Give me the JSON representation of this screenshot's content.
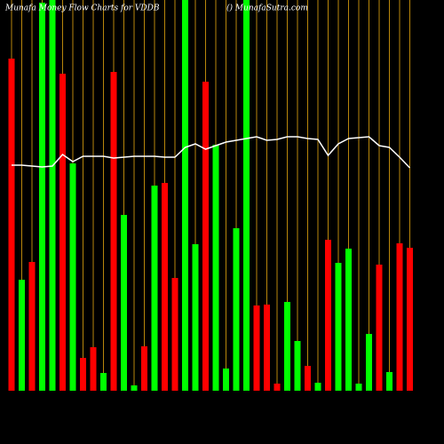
{
  "chart_data": {
    "type": "bar",
    "title": "Munafa Money Flow Charts for VDDB",
    "subtitle": "() MunafaSutra.com",
    "categories": [
      null,
      null,
      null,
      null,
      null,
      null,
      null,
      null,
      null,
      null,
      null,
      null,
      null,
      null,
      null,
      null,
      null,
      null,
      null,
      null,
      null,
      null,
      null,
      null,
      null,
      null,
      null,
      null,
      null,
      null,
      null,
      null,
      null,
      null,
      null,
      null,
      null,
      null,
      null,
      null
    ],
    "values": [
      374,
      125,
      145,
      437,
      440,
      357,
      256,
      37,
      49,
      20,
      359,
      198,
      6,
      50,
      231,
      234,
      127,
      440,
      165,
      348,
      277,
      25,
      183,
      440,
      96,
      97,
      8,
      100,
      56,
      28,
      9,
      170,
      144,
      160,
      8,
      64,
      142,
      21,
      166,
      161
    ],
    "colors": [
      "#ff0000",
      "#00ff00",
      "#ff0000",
      "#00ff00",
      "#00ff00",
      "#ff0000",
      "#00ff00",
      "#ff0000",
      "#ff0000",
      "#00ff00",
      "#ff0000",
      "#00ff00",
      "#00ff00",
      "#ff0000",
      "#00ff00",
      "#ff0000",
      "#ff0000",
      "#00ff00",
      "#00ff00",
      "#ff0000",
      "#00ff00",
      "#00ff00",
      "#00ff00",
      "#00ff00",
      "#ff0000",
      "#ff0000",
      "#ff0000",
      "#00ff00",
      "#00ff00",
      "#ff0000",
      "#00ff00",
      "#ff0000",
      "#00ff00",
      "#00ff00",
      "#00ff00",
      "#00ff00",
      "#ff0000",
      "#00ff00",
      "#ff0000",
      "#ff0000"
    ],
    "line": {
      "color": "#ffffff",
      "values": [
        254,
        254,
        253,
        252,
        253,
        266,
        258,
        264,
        264,
        264,
        262,
        263,
        264,
        264,
        264,
        263,
        263,
        274,
        278,
        272,
        276,
        280,
        282,
        284,
        286,
        282,
        283,
        286,
        286,
        284,
        283,
        265,
        278,
        284,
        285,
        286,
        276,
        274,
        263,
        251
      ]
    },
    "ylim": [
      0,
      440
    ],
    "gridline_color": "#b8860b"
  }
}
